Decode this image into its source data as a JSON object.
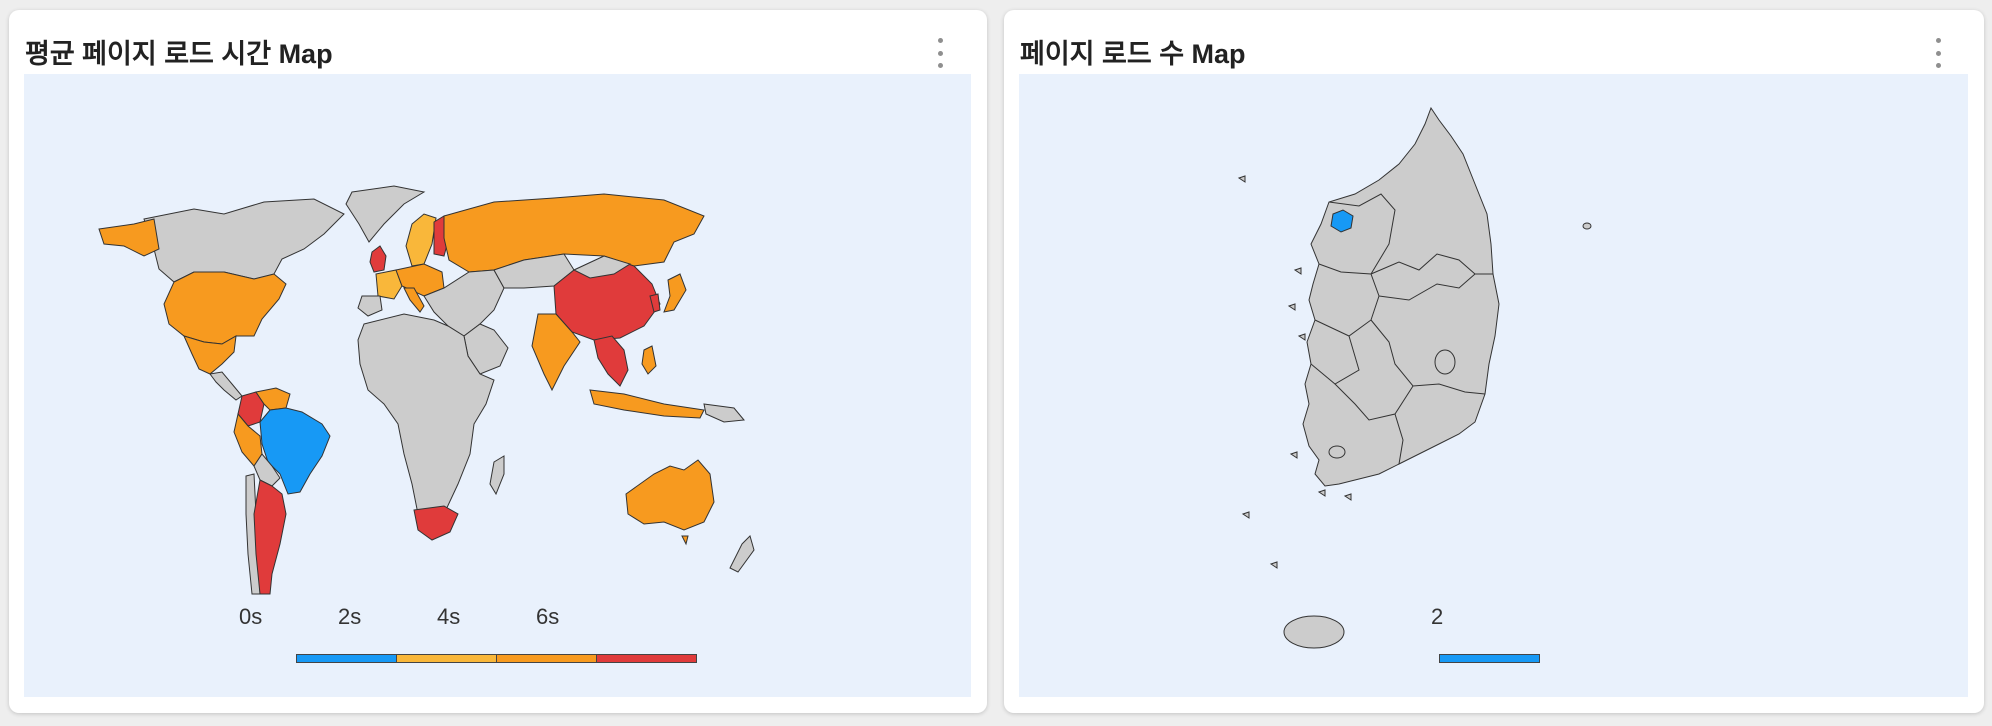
{
  "panels": [
    {
      "title": "평균 페이지 로드 시간 Map",
      "menu_icon": "more-vert-icon",
      "legend": {
        "labels": [
          "0s",
          "2s",
          "4s",
          "6s"
        ],
        "colors": [
          "#1799f5",
          "#f9b73a",
          "#f79a1f",
          "#e03b3b"
        ]
      }
    },
    {
      "title": "페이지 로드 수 Map",
      "menu_icon": "more-vert-icon",
      "legend": {
        "labels": [
          "2"
        ],
        "colors": [
          "#1799f5"
        ]
      }
    }
  ],
  "colors": {
    "no_data": "#cccccc",
    "map_background": "#e9f1fc",
    "border": "#333333"
  }
}
